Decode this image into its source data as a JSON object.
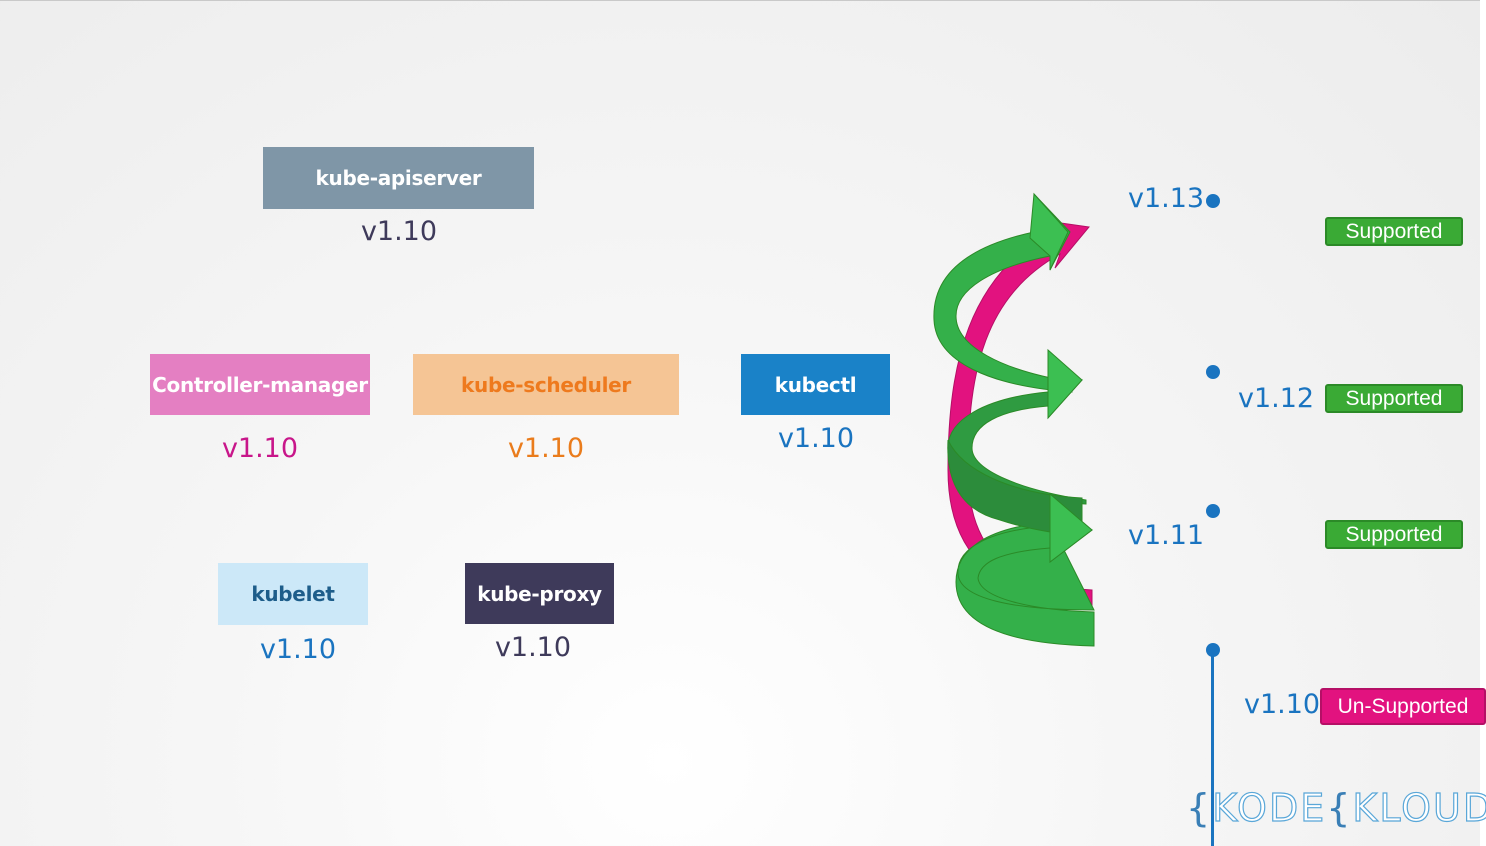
{
  "components": {
    "apiserver": {
      "label": "kube-apiserver",
      "version": "v1.10"
    },
    "controller_manager": {
      "label": "Controller-manager",
      "version": "v1.10"
    },
    "scheduler": {
      "label": "kube-scheduler",
      "version": "v1.10"
    },
    "kubectl": {
      "label": "kubectl",
      "version": "v1.10"
    },
    "kubelet": {
      "label": "kubelet",
      "version": "v1.10"
    },
    "kube_proxy": {
      "label": "kube-proxy",
      "version": "v1.10"
    }
  },
  "timeline": {
    "v113": {
      "label": "v1.13",
      "status": "Supported"
    },
    "v112": {
      "label": "v1.12",
      "status": "Supported"
    },
    "v111": {
      "label": "v1.11",
      "status": "Supported"
    },
    "v110": {
      "label": "v1.10",
      "status": "Un-Supported"
    }
  },
  "logo": {
    "brace1": "{",
    "t1": "K",
    "t2": "ODE",
    "brace2": "{",
    "t3": "K",
    "t4": "LOUD"
  },
  "colors": {
    "supported": "#3aaa35",
    "unsupported": "#e2127f",
    "timeline": "#1a74c0",
    "arrow_green": "#34b04a",
    "arrow_pink": "#e2127f"
  }
}
